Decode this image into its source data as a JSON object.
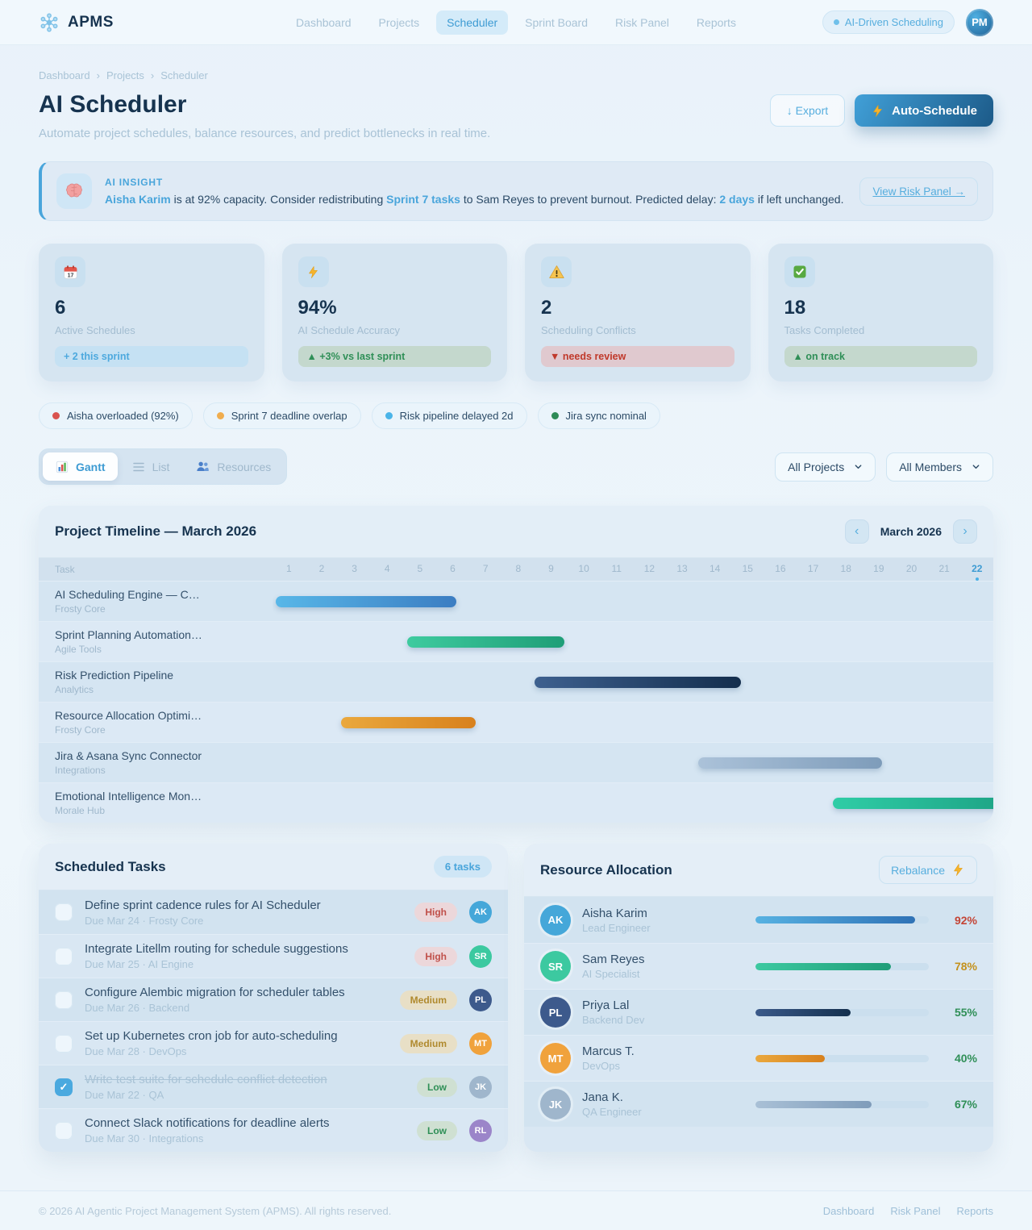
{
  "brand": {
    "name": "APMS",
    "logo": "network-icon"
  },
  "nav": {
    "items": [
      "Dashboard",
      "Projects",
      "Scheduler",
      "Sprint Board",
      "Risk Panel",
      "Reports"
    ],
    "active": "Scheduler",
    "badge": "AI-Driven Scheduling",
    "avatar_initials": "PM"
  },
  "breadcrumb": {
    "items": [
      "Dashboard",
      "Projects",
      "Scheduler"
    ],
    "separator": "›"
  },
  "page": {
    "title": "AI Scheduler",
    "subtitle": "Automate project schedules, balance resources, and predict bottlenecks in real time.",
    "export_label": "↓ Export",
    "auto_label": "Auto-Schedule",
    "auto_icon": "bolt-icon"
  },
  "insight": {
    "icon": "brain-icon",
    "label": "AI INSIGHT",
    "segments": [
      {
        "text": "Aisha Karim",
        "accent": true
      },
      {
        "text": " is at 92% capacity. Consider redistributing ",
        "accent": false
      },
      {
        "text": "Sprint 7 tasks",
        "accent": true
      },
      {
        "text": " to Sam Reyes to prevent burnout. Predicted delay: ",
        "accent": false
      },
      {
        "text": "2 days",
        "accent": true
      },
      {
        "text": " if left unchanged.",
        "accent": false
      }
    ],
    "link_label": "View Risk Panel →"
  },
  "stats": [
    {
      "icon": "calendar-icon",
      "value": "6",
      "label": "Active Schedules",
      "delta": "+ 2 this sprint",
      "tone": "blue"
    },
    {
      "icon": "bolt-icon",
      "value": "94%",
      "label": "AI Schedule Accuracy",
      "delta": "▲ +3% vs last sprint",
      "tone": "green"
    },
    {
      "icon": "warning-icon",
      "value": "2",
      "label": "Scheduling Conflicts",
      "delta": "▼ needs review",
      "tone": "red"
    },
    {
      "icon": "check-icon",
      "value": "18",
      "label": "Tasks Completed",
      "delta": "▲ on track",
      "tone": "green"
    }
  ],
  "status_pills": [
    {
      "label": "Aisha overloaded (92%)",
      "dot_color": "#d9534f"
    },
    {
      "label": "Sprint 7 deadline overlap",
      "dot_color": "#f0ad4e"
    },
    {
      "label": "Risk pipeline delayed 2d",
      "dot_color": "#4ab4e8"
    },
    {
      "label": "Jira sync nominal",
      "dot_color": "#2e8b57"
    }
  ],
  "view_tabs": [
    {
      "label": "Gantt",
      "icon": "gantt-icon",
      "active": true
    },
    {
      "label": "List",
      "icon": "list-icon",
      "active": false
    },
    {
      "label": "Resources",
      "icon": "people-icon",
      "active": false
    }
  ],
  "filters": [
    {
      "value": "All Projects"
    },
    {
      "value": "All Members"
    }
  ],
  "gantt": {
    "title": "Project Timeline — March 2026",
    "prev": "‹",
    "month_label": "March 2026",
    "next": "›",
    "task_col_header": "Task",
    "days": [
      1,
      2,
      3,
      4,
      5,
      6,
      7,
      8,
      9,
      10,
      11,
      12,
      13,
      14,
      15,
      16,
      17,
      18,
      19,
      20,
      21,
      22
    ],
    "today": 22,
    "rows": [
      {
        "name": "AI Scheduling Engine — C…",
        "team": "Frosty Core",
        "start": 0.1,
        "end": 5.6,
        "colors": [
          "#58b7e8",
          "#3b7dc2"
        ]
      },
      {
        "name": "Sprint Planning Automation…",
        "team": "Agile Tools",
        "start": 4.1,
        "end": 8.9,
        "colors": [
          "#3ecb9f",
          "#1f9e77"
        ]
      },
      {
        "name": "Risk Prediction Pipeline",
        "team": "Analytics",
        "start": 8.0,
        "end": 14.3,
        "colors": [
          "#3d608f",
          "#142e4d"
        ]
      },
      {
        "name": "Resource Allocation Optimi…",
        "team": "Frosty Core",
        "start": 2.1,
        "end": 6.2,
        "colors": [
          "#eaa83d",
          "#d8811d"
        ]
      },
      {
        "name": "Jira & Asana Sync Connector",
        "team": "Integrations",
        "start": 13.0,
        "end": 18.6,
        "colors": [
          "#abc2d9",
          "#7e9cba"
        ]
      },
      {
        "name": "Emotional Intelligence Mon…",
        "team": "Morale Hub",
        "start": 17.1,
        "end": 22.6,
        "colors": [
          "#2fcda6",
          "#1da284"
        ]
      }
    ]
  },
  "tasks": {
    "title": "Scheduled Tasks",
    "count_badge": "6 tasks",
    "items": [
      {
        "title": "Define sprint cadence rules for AI Scheduler",
        "meta": "Due Mar 24 · Frosty Core",
        "priority": "High",
        "assignee": "AK",
        "done": false
      },
      {
        "title": "Integrate Litellm routing for schedule suggestions",
        "meta": "Due Mar 25 · AI Engine",
        "priority": "High",
        "assignee": "SR",
        "done": false
      },
      {
        "title": "Configure Alembic migration for scheduler tables",
        "meta": "Due Mar 26 · Backend",
        "priority": "Medium",
        "assignee": "PL",
        "done": false
      },
      {
        "title": "Set up Kubernetes cron job for auto-scheduling",
        "meta": "Due Mar 28 · DevOps",
        "priority": "Medium",
        "assignee": "MT",
        "done": false
      },
      {
        "title": "Write test suite for schedule conflict detection",
        "meta": "Due Mar 22 · QA",
        "priority": "Low",
        "assignee": "JK",
        "done": true
      },
      {
        "title": "Connect Slack notifications for deadline alerts",
        "meta": "Due Mar 30 · Integrations",
        "priority": "Low",
        "assignee": "RL",
        "done": false
      }
    ]
  },
  "resources": {
    "title": "Resource Allocation",
    "action_label": "Rebalance",
    "action_icon": "bolt-icon",
    "items": [
      {
        "initials": "AK",
        "name": "Aisha Karim",
        "role": "Lead Engineer",
        "load_pct": 92,
        "tone": "over",
        "bar_colors": [
          "#57b2e2",
          "#2f72b6"
        ]
      },
      {
        "initials": "SR",
        "name": "Sam Reyes",
        "role": "AI Specialist",
        "load_pct": 78,
        "tone": "warn",
        "bar_colors": [
          "#3cc9a0",
          "#1f9d78"
        ]
      },
      {
        "initials": "PL",
        "name": "Priya Lal",
        "role": "Backend Dev",
        "load_pct": 55,
        "tone": "ok",
        "bar_colors": [
          "#3b5a8a",
          "#14304e"
        ]
      },
      {
        "initials": "MT",
        "name": "Marcus T.",
        "role": "DevOps",
        "load_pct": 40,
        "tone": "ok",
        "bar_colors": [
          "#eaa83d",
          "#d8811d"
        ]
      },
      {
        "initials": "JK",
        "name": "Jana K.",
        "role": "QA Engineer",
        "load_pct": 67,
        "tone": "ok",
        "bar_colors": [
          "#a9c0d6",
          "#7f9cba"
        ]
      }
    ]
  },
  "avatar_colors": {
    "AK": "#45a7d9",
    "SR": "#3cc9a0",
    "PL": "#3d5a8c",
    "MT": "#f0a23c",
    "JK": "#9fb6cc",
    "RL": "#9b85c9"
  },
  "footer": {
    "copyright": "© 2026 AI Agentic Project Management System (APMS). All rights reserved.",
    "links": [
      "Dashboard",
      "Risk Panel",
      "Reports"
    ]
  },
  "colors": {
    "accent": "#49a5db",
    "navy": "#16334f",
    "muted": "#a3bdd1"
  }
}
